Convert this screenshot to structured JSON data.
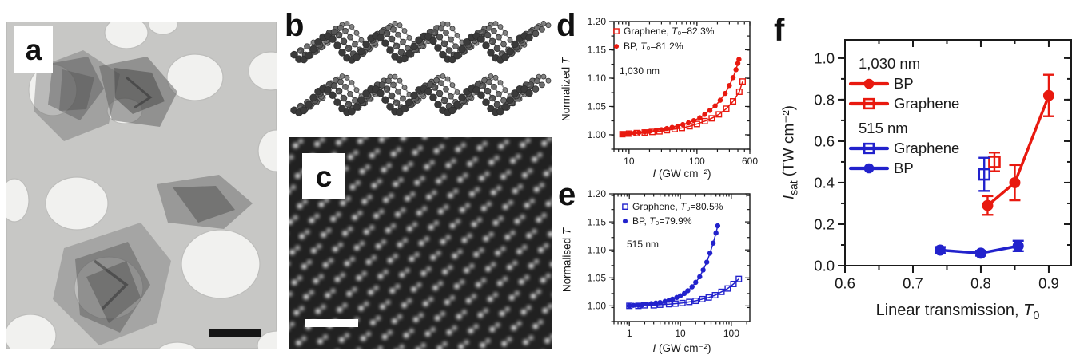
{
  "panels": {
    "a": {
      "label": "a"
    },
    "b": {
      "label": "b"
    },
    "c": {
      "label": "c"
    },
    "d": {
      "label": "d"
    },
    "e": {
      "label": "e"
    },
    "f": {
      "label": "f"
    }
  },
  "colors": {
    "red": "#e8190f",
    "blue": "#2222cc",
    "text": "#1a1a1a"
  },
  "chart_data": [
    {
      "id": "d",
      "type": "scatter",
      "xscale": "log",
      "annotation": "1,030 nm",
      "xlabel_parts": {
        "I": "I",
        "rest": " (GW cm⁻²)"
      },
      "ylabel_parts": {
        "pre": "Normalized ",
        "T": "T"
      },
      "xlim": [
        6,
        600
      ],
      "ylim": [
        0.9745,
        1.2
      ],
      "xticks": [
        10,
        100,
        600
      ],
      "yticks": [
        1.0,
        1.05,
        1.1,
        1.15,
        1.2
      ],
      "yminor": 0.025,
      "ydec": 2,
      "color": "#e8190f",
      "grid": false,
      "legend_position": "top-left-inside",
      "series": [
        {
          "name": "Graphene, T₀=82.3%",
          "marker": "open-square",
          "connect": true,
          "points": [
            [
              8,
              1.001
            ],
            [
              10,
              1.002
            ],
            [
              13,
              1.003
            ],
            [
              17,
              1.004
            ],
            [
              22,
              1.005
            ],
            [
              28,
              1.006
            ],
            [
              36,
              1.008
            ],
            [
              47,
              1.01
            ],
            [
              60,
              1.012
            ],
            [
              78,
              1.015
            ],
            [
              100,
              1.019
            ],
            [
              130,
              1.024
            ],
            [
              165,
              1.029
            ],
            [
              210,
              1.036
            ],
            [
              270,
              1.046
            ],
            [
              340,
              1.059
            ],
            [
              420,
              1.076
            ],
            [
              470,
              1.094
            ]
          ]
        },
        {
          "name": "BP, T₀=81.2%",
          "marker": "filled-circle",
          "connect": true,
          "points": [
            [
              8,
              1.001
            ],
            [
              9,
              1.002
            ],
            [
              10,
              1.002
            ],
            [
              12,
              1.003
            ],
            [
              14,
              1.004
            ],
            [
              17,
              1.005
            ],
            [
              20,
              1.006
            ],
            [
              25,
              1.008
            ],
            [
              30,
              1.009
            ],
            [
              36,
              1.011
            ],
            [
              43,
              1.013
            ],
            [
              52,
              1.015
            ],
            [
              62,
              1.018
            ],
            [
              75,
              1.021
            ],
            [
              90,
              1.025
            ],
            [
              110,
              1.03
            ],
            [
              130,
              1.036
            ],
            [
              155,
              1.043
            ],
            [
              185,
              1.051
            ],
            [
              220,
              1.061
            ],
            [
              260,
              1.073
            ],
            [
              300,
              1.087
            ],
            [
              340,
              1.101
            ],
            [
              375,
              1.115
            ],
            [
              400,
              1.126
            ],
            [
              415,
              1.133
            ]
          ]
        }
      ]
    },
    {
      "id": "e",
      "type": "scatter",
      "xscale": "log",
      "annotation": "515 nm",
      "xlabel_parts": {
        "I": "I",
        "rest": " (GW cm⁻²)"
      },
      "ylabel_parts": {
        "pre": "Normalised ",
        "T": "T"
      },
      "xlim": [
        0.5,
        230
      ],
      "ylim": [
        0.972,
        1.2
      ],
      "xticks": [
        1,
        10,
        100
      ],
      "yticks": [
        1.0,
        1.05,
        1.1,
        1.15,
        1.2
      ],
      "yminor": 0.025,
      "ydec": 2,
      "color": "#2222cc",
      "grid": false,
      "legend_position": "top-left-inside",
      "series": [
        {
          "name": "Graphene, T₀=80.5%",
          "marker": "open-square",
          "connect": true,
          "points": [
            [
              1,
              1.0
            ],
            [
              1.5,
              1.0
            ],
            [
              2,
              1.001
            ],
            [
              3,
              1.001
            ],
            [
              4,
              1.002
            ],
            [
              6,
              1.003
            ],
            [
              8,
              1.004
            ],
            [
              11,
              1.005
            ],
            [
              15,
              1.007
            ],
            [
              20,
              1.009
            ],
            [
              27,
              1.012
            ],
            [
              36,
              1.015
            ],
            [
              48,
              1.019
            ],
            [
              64,
              1.025
            ],
            [
              85,
              1.031
            ],
            [
              110,
              1.039
            ],
            [
              140,
              1.048
            ]
          ]
        },
        {
          "name": "BP, T₀=79.9%",
          "marker": "filled-circle",
          "connect": true,
          "points": [
            [
              1,
              1.0
            ],
            [
              1.2,
              1.001
            ],
            [
              1.5,
              1.001
            ],
            [
              1.8,
              1.002
            ],
            [
              2.2,
              1.003
            ],
            [
              2.7,
              1.004
            ],
            [
              3.3,
              1.005
            ],
            [
              4,
              1.006
            ],
            [
              5,
              1.008
            ],
            [
              6,
              1.01
            ],
            [
              7,
              1.012
            ],
            [
              8.5,
              1.015
            ],
            [
              10,
              1.018
            ],
            [
              12,
              1.022
            ],
            [
              14,
              1.027
            ],
            [
              17,
              1.034
            ],
            [
              20,
              1.042
            ],
            [
              24,
              1.052
            ],
            [
              28,
              1.064
            ],
            [
              33,
              1.078
            ],
            [
              38,
              1.094
            ],
            [
              44,
              1.112
            ],
            [
              50,
              1.13
            ],
            [
              54,
              1.143
            ]
          ]
        }
      ]
    },
    {
      "id": "f",
      "type": "scatter",
      "xscale": "linear",
      "xlabel_parts": {
        "pre": "Linear transmission, ",
        "T": "T",
        "sub": "0"
      },
      "ylabel_parts": {
        "main": "I",
        "sub": "sat",
        "rest": " (TW cm⁻²)"
      },
      "xlim": [
        0.6,
        0.933
      ],
      "ylim": [
        0,
        1.088
      ],
      "xticks": [
        0.6,
        0.7,
        0.8,
        0.9
      ],
      "xminor": 0.05,
      "xfmt": "f1",
      "yticks": [
        0.0,
        0.2,
        0.4,
        0.6,
        0.8,
        1.0
      ],
      "yminor": 0.1,
      "ydec": 1,
      "grid": false,
      "legend": {
        "groups": [
          {
            "label": "1,030 nm",
            "color": "#e8190f",
            "items": [
              {
                "label": "BP",
                "marker": "filled-circle"
              },
              {
                "label": "Graphene",
                "marker": "open-square"
              }
            ]
          },
          {
            "label": "515 nm",
            "color": "#2222cc",
            "items": [
              {
                "label": "Graphene",
                "marker": "open-square"
              },
              {
                "label": "BP",
                "marker": "filled-circle"
              }
            ]
          }
        ]
      },
      "series": [
        {
          "name": "BP 1,030 nm",
          "color": "#e8190f",
          "marker": "filled-circle",
          "connect": true,
          "points": [
            [
              0.81,
              0.29,
              0.045
            ],
            [
              0.85,
              0.4,
              0.085
            ],
            [
              0.9,
              0.82,
              0.1
            ]
          ]
        },
        {
          "name": "Graphene 1,030 nm",
          "color": "#e8190f",
          "marker": "open-square",
          "connect": false,
          "points": [
            [
              0.82,
              0.5,
              0.045
            ]
          ]
        },
        {
          "name": "Graphene 515 nm",
          "color": "#2222cc",
          "marker": "open-square",
          "connect": false,
          "points": [
            [
              0.805,
              0.44,
              0.08
            ]
          ]
        },
        {
          "name": "BP 515 nm",
          "color": "#2222cc",
          "marker": "filled-circle",
          "connect": true,
          "points": [
            [
              0.74,
              0.075,
              0.015
            ],
            [
              0.8,
              0.06,
              0.012
            ],
            [
              0.855,
              0.095,
              0.025
            ]
          ]
        }
      ]
    }
  ]
}
